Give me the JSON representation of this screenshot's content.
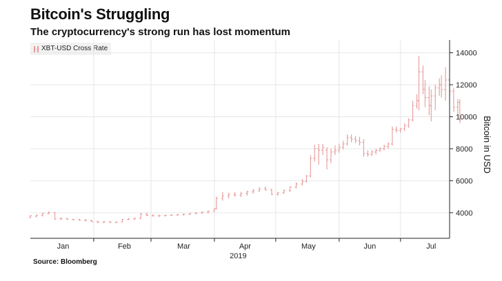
{
  "header": {
    "title": "Bitcoin's Struggling",
    "subtitle": "The cryptocurrency's strong run has lost momentum"
  },
  "footer": {
    "source": "Source: Bloomberg"
  },
  "colors": {
    "series": "#e79a9a",
    "grid": "#e6e6e6",
    "axis": "#222222"
  },
  "chart_data": {
    "type": "bar",
    "subtype": "ohlc",
    "title": "Bitcoin's Struggling",
    "subtitle": "The cryptocurrency's strong run has lost momentum",
    "legend": [
      "XBT-USD Cross Rate"
    ],
    "legend_position": "top-left",
    "ylabel": "Bitcoin in USD",
    "y_axis_side": "right",
    "ylim": [
      2400,
      14800
    ],
    "yticks": [
      4000,
      6000,
      8000,
      10000,
      12000,
      14000
    ],
    "xlim": [
      0,
      205
    ],
    "xtick_labels": [
      "Jan",
      "Feb",
      "Mar",
      "Apr",
      "May",
      "Jun",
      "Jul"
    ],
    "xtick_centers": [
      16,
      46,
      75,
      105,
      136,
      166,
      196
    ],
    "month_starts": [
      31,
      59,
      90,
      120,
      151,
      181
    ],
    "year_label": "2019",
    "series": [
      {
        "name": "XBT-USD Cross Rate",
        "ohlc": [
          [
            0,
            3700,
            3850,
            3650,
            3800
          ],
          [
            3,
            3780,
            3870,
            3700,
            3850
          ],
          [
            6,
            3840,
            4000,
            3760,
            3950
          ],
          [
            9,
            3950,
            4080,
            3900,
            4020
          ],
          [
            12,
            4000,
            4050,
            3560,
            3600
          ],
          [
            15,
            3620,
            3700,
            3540,
            3640
          ],
          [
            18,
            3640,
            3680,
            3560,
            3580
          ],
          [
            21,
            3580,
            3620,
            3520,
            3560
          ],
          [
            24,
            3560,
            3610,
            3500,
            3540
          ],
          [
            27,
            3540,
            3600,
            3460,
            3520
          ],
          [
            30,
            3500,
            3560,
            3420,
            3440
          ],
          [
            33,
            3440,
            3500,
            3360,
            3400
          ],
          [
            36,
            3400,
            3480,
            3350,
            3430
          ],
          [
            39,
            3430,
            3480,
            3360,
            3400
          ],
          [
            42,
            3380,
            3450,
            3350,
            3420
          ],
          [
            45,
            3420,
            3600,
            3400,
            3580
          ],
          [
            48,
            3580,
            3660,
            3540,
            3600
          ],
          [
            51,
            3600,
            3700,
            3560,
            3640
          ],
          [
            54,
            3640,
            4000,
            3600,
            3900
          ],
          [
            57,
            3900,
            4000,
            3780,
            3840
          ],
          [
            60,
            3820,
            3900,
            3760,
            3800
          ],
          [
            63,
            3800,
            3880,
            3740,
            3820
          ],
          [
            66,
            3820,
            3880,
            3760,
            3840
          ],
          [
            69,
            3840,
            3900,
            3790,
            3860
          ],
          [
            72,
            3860,
            3920,
            3800,
            3880
          ],
          [
            75,
            3880,
            3950,
            3820,
            3900
          ],
          [
            78,
            3900,
            3980,
            3860,
            3950
          ],
          [
            81,
            3950,
            4030,
            3900,
            4000
          ],
          [
            84,
            4000,
            4080,
            3930,
            4040
          ],
          [
            87,
            4040,
            4120,
            3960,
            4100
          ],
          [
            90,
            4120,
            4300,
            4050,
            4250
          ],
          [
            91,
            4250,
            5000,
            4200,
            4900
          ],
          [
            94,
            4900,
            5300,
            4750,
            5050
          ],
          [
            97,
            5050,
            5250,
            4900,
            5150
          ],
          [
            100,
            5150,
            5280,
            5000,
            5100
          ],
          [
            103,
            5100,
            5300,
            4980,
            5200
          ],
          [
            106,
            5200,
            5380,
            5060,
            5300
          ],
          [
            109,
            5300,
            5480,
            5200,
            5380
          ],
          [
            112,
            5380,
            5600,
            5300,
            5500
          ],
          [
            115,
            5500,
            5650,
            5380,
            5420
          ],
          [
            118,
            5420,
            5500,
            5100,
            5150
          ],
          [
            121,
            5150,
            5300,
            5050,
            5250
          ],
          [
            124,
            5250,
            5450,
            5180,
            5380
          ],
          [
            127,
            5380,
            5650,
            5300,
            5600
          ],
          [
            130,
            5600,
            5900,
            5520,
            5800
          ],
          [
            133,
            5800,
            6100,
            5700,
            5950
          ],
          [
            135,
            5950,
            6350,
            5900,
            6300
          ],
          [
            137,
            6300,
            7600,
            6200,
            7400
          ],
          [
            139,
            7400,
            8250,
            7200,
            8000
          ],
          [
            141,
            8000,
            8300,
            7000,
            7900
          ],
          [
            143,
            7900,
            8300,
            7600,
            8100
          ],
          [
            145,
            7900,
            8100,
            6700,
            7300
          ],
          [
            147,
            7300,
            8000,
            7100,
            7800
          ],
          [
            149,
            7800,
            8200,
            7600,
            7900
          ],
          [
            151,
            7900,
            8300,
            7750,
            8100
          ],
          [
            153,
            8100,
            8500,
            7950,
            8300
          ],
          [
            155,
            8300,
            8900,
            8200,
            8700
          ],
          [
            157,
            8700,
            8900,
            8400,
            8600
          ],
          [
            159,
            8600,
            8800,
            8350,
            8500
          ],
          [
            161,
            8500,
            8750,
            8200,
            8400
          ],
          [
            163,
            8400,
            8600,
            7500,
            7700
          ],
          [
            165,
            7700,
            7900,
            7500,
            7650
          ],
          [
            167,
            7650,
            7900,
            7550,
            7800
          ],
          [
            169,
            7800,
            8000,
            7650,
            7900
          ],
          [
            171,
            7900,
            8100,
            7800,
            8000
          ],
          [
            173,
            8000,
            8250,
            7900,
            8150
          ],
          [
            175,
            8150,
            8400,
            8000,
            8300
          ],
          [
            177,
            8300,
            9400,
            8200,
            9200
          ],
          [
            179,
            9200,
            9400,
            9000,
            9150
          ],
          [
            181,
            9150,
            9300,
            9000,
            9250
          ],
          [
            183,
            9250,
            9600,
            9100,
            9450
          ],
          [
            185,
            9450,
            9900,
            9300,
            9800
          ],
          [
            187,
            9800,
            11000,
            9700,
            10700
          ],
          [
            189,
            10700,
            11400,
            10500,
            11000
          ],
          [
            190,
            11000,
            13800,
            10400,
            12800
          ],
          [
            192,
            12800,
            13200,
            11400,
            11700
          ],
          [
            193,
            11700,
            12300,
            10600,
            11200
          ],
          [
            195,
            11200,
            11900,
            10100,
            10700
          ],
          [
            196,
            10700,
            11700,
            9700,
            11300
          ],
          [
            198,
            11300,
            12000,
            10400,
            11800
          ],
          [
            200,
            11800,
            12400,
            11300,
            12000
          ],
          [
            201,
            12000,
            12600,
            11200,
            11700
          ],
          [
            203,
            11700,
            13100,
            11000,
            12300
          ],
          [
            205,
            12300,
            12500,
            10800,
            11600
          ],
          [
            207,
            11600,
            11800,
            10300,
            10600
          ],
          [
            209,
            10600,
            11100,
            10000,
            10900
          ],
          [
            210,
            10900,
            11100,
            9600,
            9800
          ]
        ]
      }
    ]
  }
}
